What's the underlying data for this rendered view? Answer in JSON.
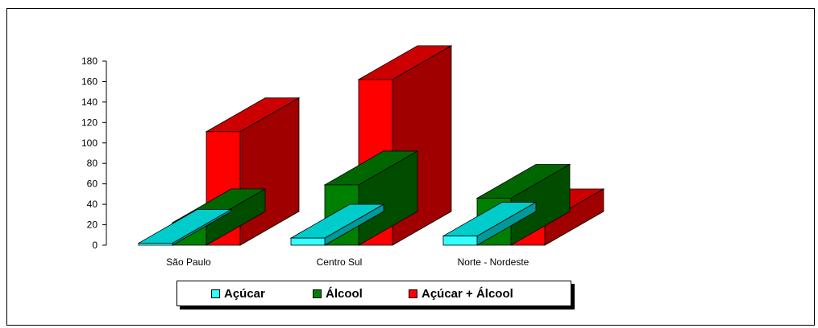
{
  "chart_data": {
    "type": "bar",
    "style": "3d-clustered",
    "categories": [
      "São Paulo",
      "Centro Sul",
      "Norte - Nordeste"
    ],
    "series": [
      {
        "name": "Açúcar",
        "values": [
          2,
          7,
          9
        ],
        "color": "#33FFFF",
        "top_color": "#00CCCC",
        "side_color": "#009999"
      },
      {
        "name": "Álcool",
        "values": [
          22,
          59,
          46
        ],
        "color": "#008000",
        "top_color": "#006600",
        "side_color": "#004D00"
      },
      {
        "name": "Açúcar + Álcool",
        "values": [
          111,
          162,
          22
        ],
        "color": "#FF0000",
        "top_color": "#CC0000",
        "side_color": "#A00000"
      }
    ],
    "y_ticks": [
      "0",
      "20",
      "40",
      "60",
      "80",
      "100",
      "120",
      "140",
      "160",
      "180"
    ],
    "ylim": [
      0,
      180
    ],
    "legend_position": "bottom",
    "grid": false
  }
}
